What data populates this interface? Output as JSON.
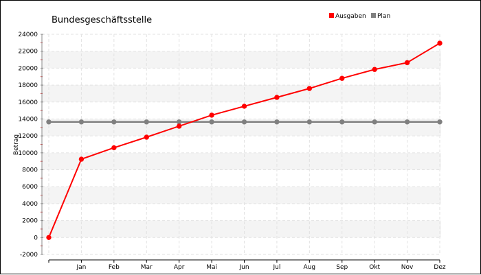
{
  "chart_data": {
    "type": "line",
    "title": "Bundesgeschäftsstelle",
    "xlabel": "",
    "ylabel": "Betrag",
    "categories": [
      "",
      "Jan",
      "Feb",
      "Mar",
      "Apr",
      "Mai",
      "Jun",
      "Jul",
      "Aug",
      "Sep",
      "Okt",
      "Nov",
      "Dez"
    ],
    "ylim": [
      -2000,
      24000
    ],
    "yticks": [
      -2000,
      0,
      2000,
      4000,
      6000,
      8000,
      10000,
      12000,
      14000,
      16000,
      18000,
      20000,
      22000,
      24000
    ],
    "grid": true,
    "legend_position": "top-right",
    "series": [
      {
        "name": "Ausgaben",
        "color": "#ff0000",
        "values": [
          0,
          9250,
          10600,
          11850,
          13150,
          14450,
          15500,
          16550,
          17600,
          18800,
          19850,
          20650,
          22950
        ]
      },
      {
        "name": "Plan",
        "color": "#808080",
        "values": [
          13650,
          13650,
          13650,
          13650,
          13650,
          13650,
          13650,
          13650,
          13650,
          13650,
          13650,
          13650,
          13650
        ]
      }
    ]
  }
}
